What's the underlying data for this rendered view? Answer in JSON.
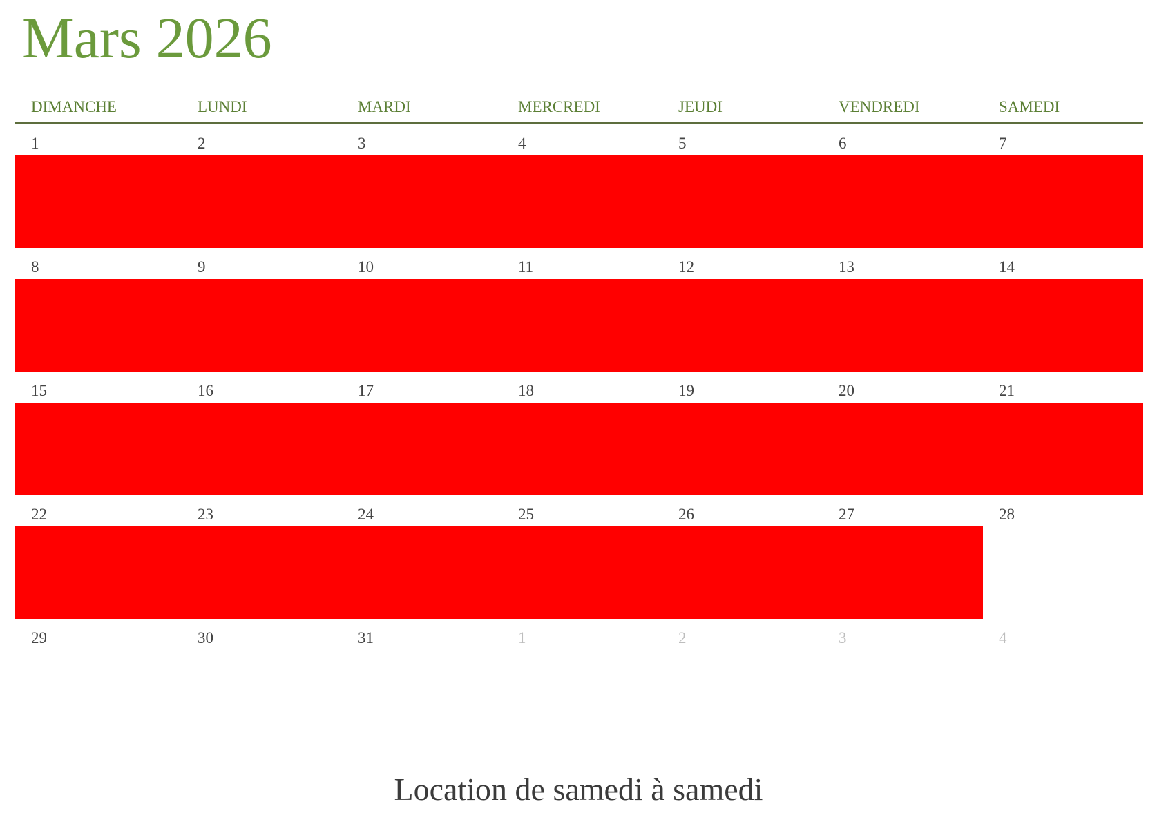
{
  "title": "Mars 2026",
  "weekdays": [
    "DIMANCHE",
    "LUNDI",
    "MARDI",
    "MERCREDI",
    "JEUDI",
    "VENDREDI",
    "SAMEDI"
  ],
  "weeks": [
    [
      {
        "d": "1"
      },
      {
        "d": "2"
      },
      {
        "d": "3"
      },
      {
        "d": "4"
      },
      {
        "d": "5"
      },
      {
        "d": "6"
      },
      {
        "d": "7"
      }
    ],
    [
      {
        "d": "8"
      },
      {
        "d": "9"
      },
      {
        "d": "10"
      },
      {
        "d": "11"
      },
      {
        "d": "12"
      },
      {
        "d": "13"
      },
      {
        "d": "14"
      }
    ],
    [
      {
        "d": "15"
      },
      {
        "d": "16"
      },
      {
        "d": "17"
      },
      {
        "d": "18"
      },
      {
        "d": "19"
      },
      {
        "d": "20"
      },
      {
        "d": "21"
      }
    ],
    [
      {
        "d": "22"
      },
      {
        "d": "23"
      },
      {
        "d": "24"
      },
      {
        "d": "25"
      },
      {
        "d": "26"
      },
      {
        "d": "27"
      },
      {
        "d": "28"
      }
    ],
    [
      {
        "d": "29"
      },
      {
        "d": "30"
      },
      {
        "d": "31"
      },
      {
        "d": "1",
        "muted": true
      },
      {
        "d": "2",
        "muted": true
      },
      {
        "d": "3",
        "muted": true
      },
      {
        "d": "4",
        "muted": true
      }
    ]
  ],
  "bookings": [
    {
      "week": 0,
      "start_day": 1,
      "end_day": 7
    },
    {
      "week": 1,
      "start_day": 8,
      "end_day": 14
    },
    {
      "week": 2,
      "start_day": 15,
      "end_day": 21
    },
    {
      "week": 3,
      "start_day": 22,
      "end_day": 27
    }
  ],
  "colors": {
    "title": "#6b9a3c",
    "weekday": "#5b7f34",
    "booked": "#ff0000",
    "rule": "#5d6e3d",
    "muted_day": "#bdbdbd"
  },
  "footer": "Location de samedi à samedi"
}
